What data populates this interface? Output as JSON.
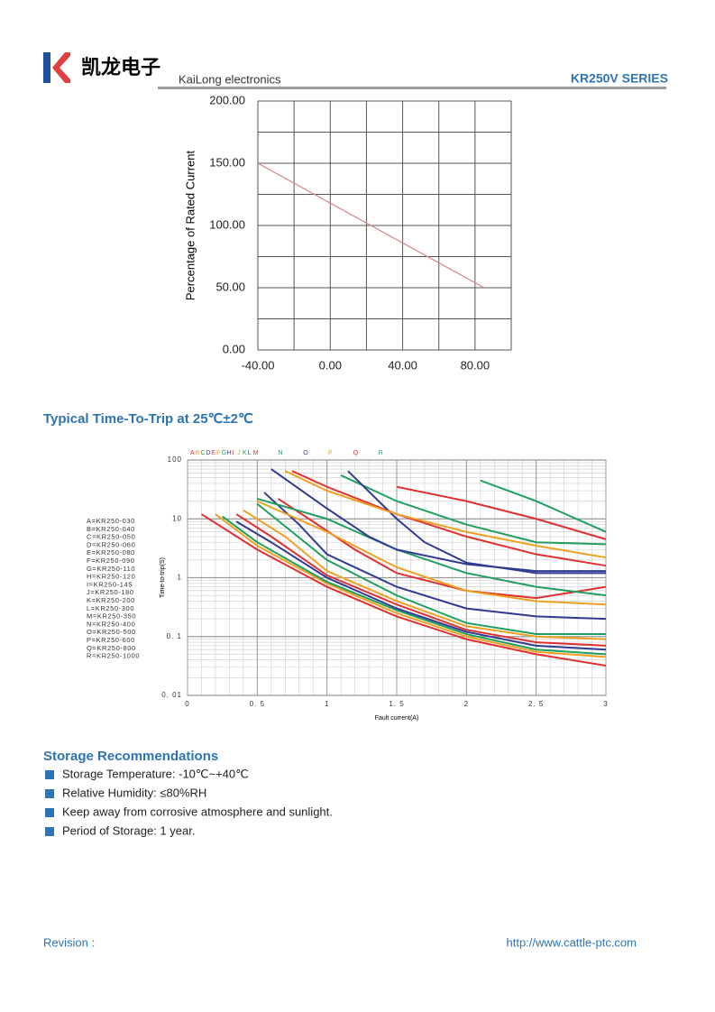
{
  "header": {
    "logo_text": "凯龙电子",
    "company": "KaiLong electronics",
    "series": "KR250V SERIES"
  },
  "chart_data": [
    {
      "type": "line",
      "ylabel": "Percentage of Rated Current",
      "xlim": [
        -40,
        100
      ],
      "ylim": [
        0,
        200
      ],
      "xticks": [
        {
          "value": -40,
          "label": "-40.00"
        },
        {
          "value": 0,
          "label": "0.00"
        },
        {
          "value": 40,
          "label": "40.00"
        },
        {
          "value": 80,
          "label": "80.00"
        }
      ],
      "yticks": [
        {
          "value": 0,
          "label": "0.00"
        },
        {
          "value": 50,
          "label": "50.00"
        },
        {
          "value": 100,
          "label": "100.00"
        },
        {
          "value": 150,
          "label": "150.00"
        },
        {
          "value": 200,
          "label": "200.00"
        }
      ],
      "xgrid": [
        -40,
        -20,
        0,
        20,
        40,
        60,
        80,
        100
      ],
      "ygrid": [
        0,
        25,
        50,
        75,
        100,
        125,
        150,
        175,
        200
      ],
      "series": [
        {
          "color": "#d98585",
          "x": [
            -40,
            85
          ],
          "values": [
            150,
            50
          ]
        }
      ]
    },
    {
      "type": "line",
      "title": "Typical Time-To-Trip at 25℃±2℃",
      "xlabel": "Fault current(A)",
      "ylabel": "Time-to-trip(S)",
      "log_y": true,
      "grid": true,
      "xlim": [
        0,
        3
      ],
      "ylim": [
        0.01,
        100
      ],
      "xticks": [
        0,
        {
          "value": 0.5,
          "label": "0. 5"
        },
        1,
        {
          "value": 1.5,
          "label": "1. 5"
        },
        2,
        {
          "value": 2.5,
          "label": "2. 5"
        },
        3
      ],
      "yticks": [
        {
          "value": 0.01,
          "label": "0. 01"
        },
        {
          "value": 0.1,
          "label": "0. 1"
        },
        1,
        10,
        100
      ],
      "series": [
        {
          "name": "A",
          "legend": "A=KR250-030",
          "color": "#e03030",
          "x": [
            0.1,
            0.5,
            1,
            1.5,
            2,
            2.5,
            3
          ],
          "values": [
            12,
            3,
            0.7,
            0.22,
            0.09,
            0.05,
            0.032
          ]
        },
        {
          "name": "B",
          "legend": "B=KR250-040",
          "color": "#f0a020",
          "x": [
            0.2,
            0.5,
            1,
            1.5,
            2,
            2.5,
            3
          ],
          "values": [
            12,
            3.5,
            0.8,
            0.25,
            0.1,
            0.055,
            0.045
          ]
        },
        {
          "name": "C",
          "legend": "C=KR250-050",
          "color": "#20a060",
          "x": [
            0.25,
            0.5,
            1,
            1.5,
            2,
            2.5,
            3
          ],
          "values": [
            11,
            4,
            0.85,
            0.28,
            0.11,
            0.06,
            0.05
          ]
        },
        {
          "name": "D",
          "legend": "D=KR250-060",
          "color": "#303a90",
          "x": [
            0.35,
            0.6,
            1,
            1.5,
            2,
            2.5,
            3
          ],
          "values": [
            9,
            4,
            1,
            0.3,
            0.12,
            0.07,
            0.06
          ]
        },
        {
          "name": "E",
          "legend": "E=KR250-080",
          "color": "#e03030",
          "x": [
            0.35,
            0.6,
            1,
            1.5,
            2,
            2.5,
            3
          ],
          "values": [
            12,
            5,
            1.1,
            0.35,
            0.13,
            0.08,
            0.07
          ]
        },
        {
          "name": "F",
          "legend": "F=KR250-090",
          "color": "#f0a020",
          "x": [
            0.4,
            0.7,
            1,
            1.5,
            2,
            2.5,
            3
          ],
          "values": [
            14,
            5,
            1.3,
            0.4,
            0.15,
            0.1,
            0.09
          ]
        },
        {
          "name": "G",
          "legend": "G=KR250-110",
          "color": "#20a060",
          "x": [
            0.5,
            0.75,
            1,
            1.5,
            2,
            2.5,
            3
          ],
          "values": [
            18,
            6,
            2,
            0.5,
            0.17,
            0.11,
            0.11
          ]
        },
        {
          "name": "H",
          "legend": "H=KR250-120",
          "color": "#303a90",
          "x": [
            0.55,
            0.8,
            1,
            1.5,
            2,
            2.5,
            3
          ],
          "values": [
            28,
            8,
            2.5,
            0.7,
            0.3,
            0.22,
            0.2
          ]
        },
        {
          "name": "I",
          "legend": "I=KR250-145",
          "color": "#e03030",
          "x": [
            0.65,
            0.9,
            1.2,
            1.5,
            2,
            2.5,
            3
          ],
          "values": [
            22,
            9,
            3,
            1.2,
            0.6,
            0.45,
            0.7
          ]
        },
        {
          "name": "J",
          "legend": "J=KR250-180",
          "color": "#f0a020",
          "x": [
            0.5,
            1,
            1.5,
            2,
            2.5,
            3
          ],
          "values": [
            20,
            6,
            1.5,
            0.6,
            0.4,
            0.35
          ]
        },
        {
          "name": "K",
          "legend": "K=KR250-200",
          "color": "#20a060",
          "x": [
            0.5,
            1,
            1.5,
            2,
            2.5,
            3
          ],
          "values": [
            22,
            10,
            3,
            1.2,
            0.7,
            0.5
          ]
        },
        {
          "name": "L",
          "legend": "L=KR250-300",
          "color": "#303a90",
          "x": [
            0.6,
            1,
            1.3,
            1.5,
            2,
            2.5,
            3
          ],
          "values": [
            70,
            15,
            5,
            3,
            1.7,
            1.3,
            1.3
          ]
        },
        {
          "name": "M",
          "legend": "M=KR250-350",
          "color": "#e03030",
          "x": [
            0.75,
            1,
            1.5,
            2,
            2.5,
            3
          ],
          "values": [
            65,
            35,
            12,
            5,
            2.5,
            1.6
          ]
        },
        {
          "name": "N",
          "legend": "N=KR250-400",
          "color": "#20a060",
          "x": [
            1.1,
            1.5,
            2,
            2.5,
            3
          ],
          "values": [
            55,
            20,
            8,
            4,
            3.7
          ]
        },
        {
          "name": "O",
          "legend": "O=KR250-500",
          "color": "#303a90",
          "x": [
            1.15,
            1.5,
            1.7,
            2,
            2.5,
            3
          ],
          "values": [
            65,
            10,
            4,
            1.8,
            1.2,
            1.2
          ]
        },
        {
          "name": "P",
          "legend": "P=KR250-600",
          "color": "#f0a020",
          "x": [
            0.7,
            1,
            1.5,
            2,
            2.5,
            3
          ],
          "values": [
            65,
            30,
            12,
            6,
            3.5,
            2.2
          ]
        },
        {
          "name": "Q",
          "legend": "Q=KR250-800",
          "color": "#e03030",
          "x": [
            1.5,
            2,
            2.5,
            3
          ],
          "values": [
            35,
            20,
            10,
            4.5
          ]
        },
        {
          "name": "R",
          "legend": "R=KR250-1000",
          "color": "#20a060",
          "x": [
            2.1,
            2.5,
            3
          ],
          "values": [
            45,
            20,
            6
          ]
        }
      ]
    }
  ],
  "storage": {
    "title": "Storage Recommendations",
    "items": [
      "Storage Temperature: -10℃~+40℃",
      "Relative Humidity: ≤80%RH",
      "Keep away from corrosive atmosphere and sunlight.",
      "Period of Storage: 1 year."
    ]
  },
  "footer": {
    "revision": "Revision :",
    "url": "http://www.cattle-ptc.com"
  }
}
